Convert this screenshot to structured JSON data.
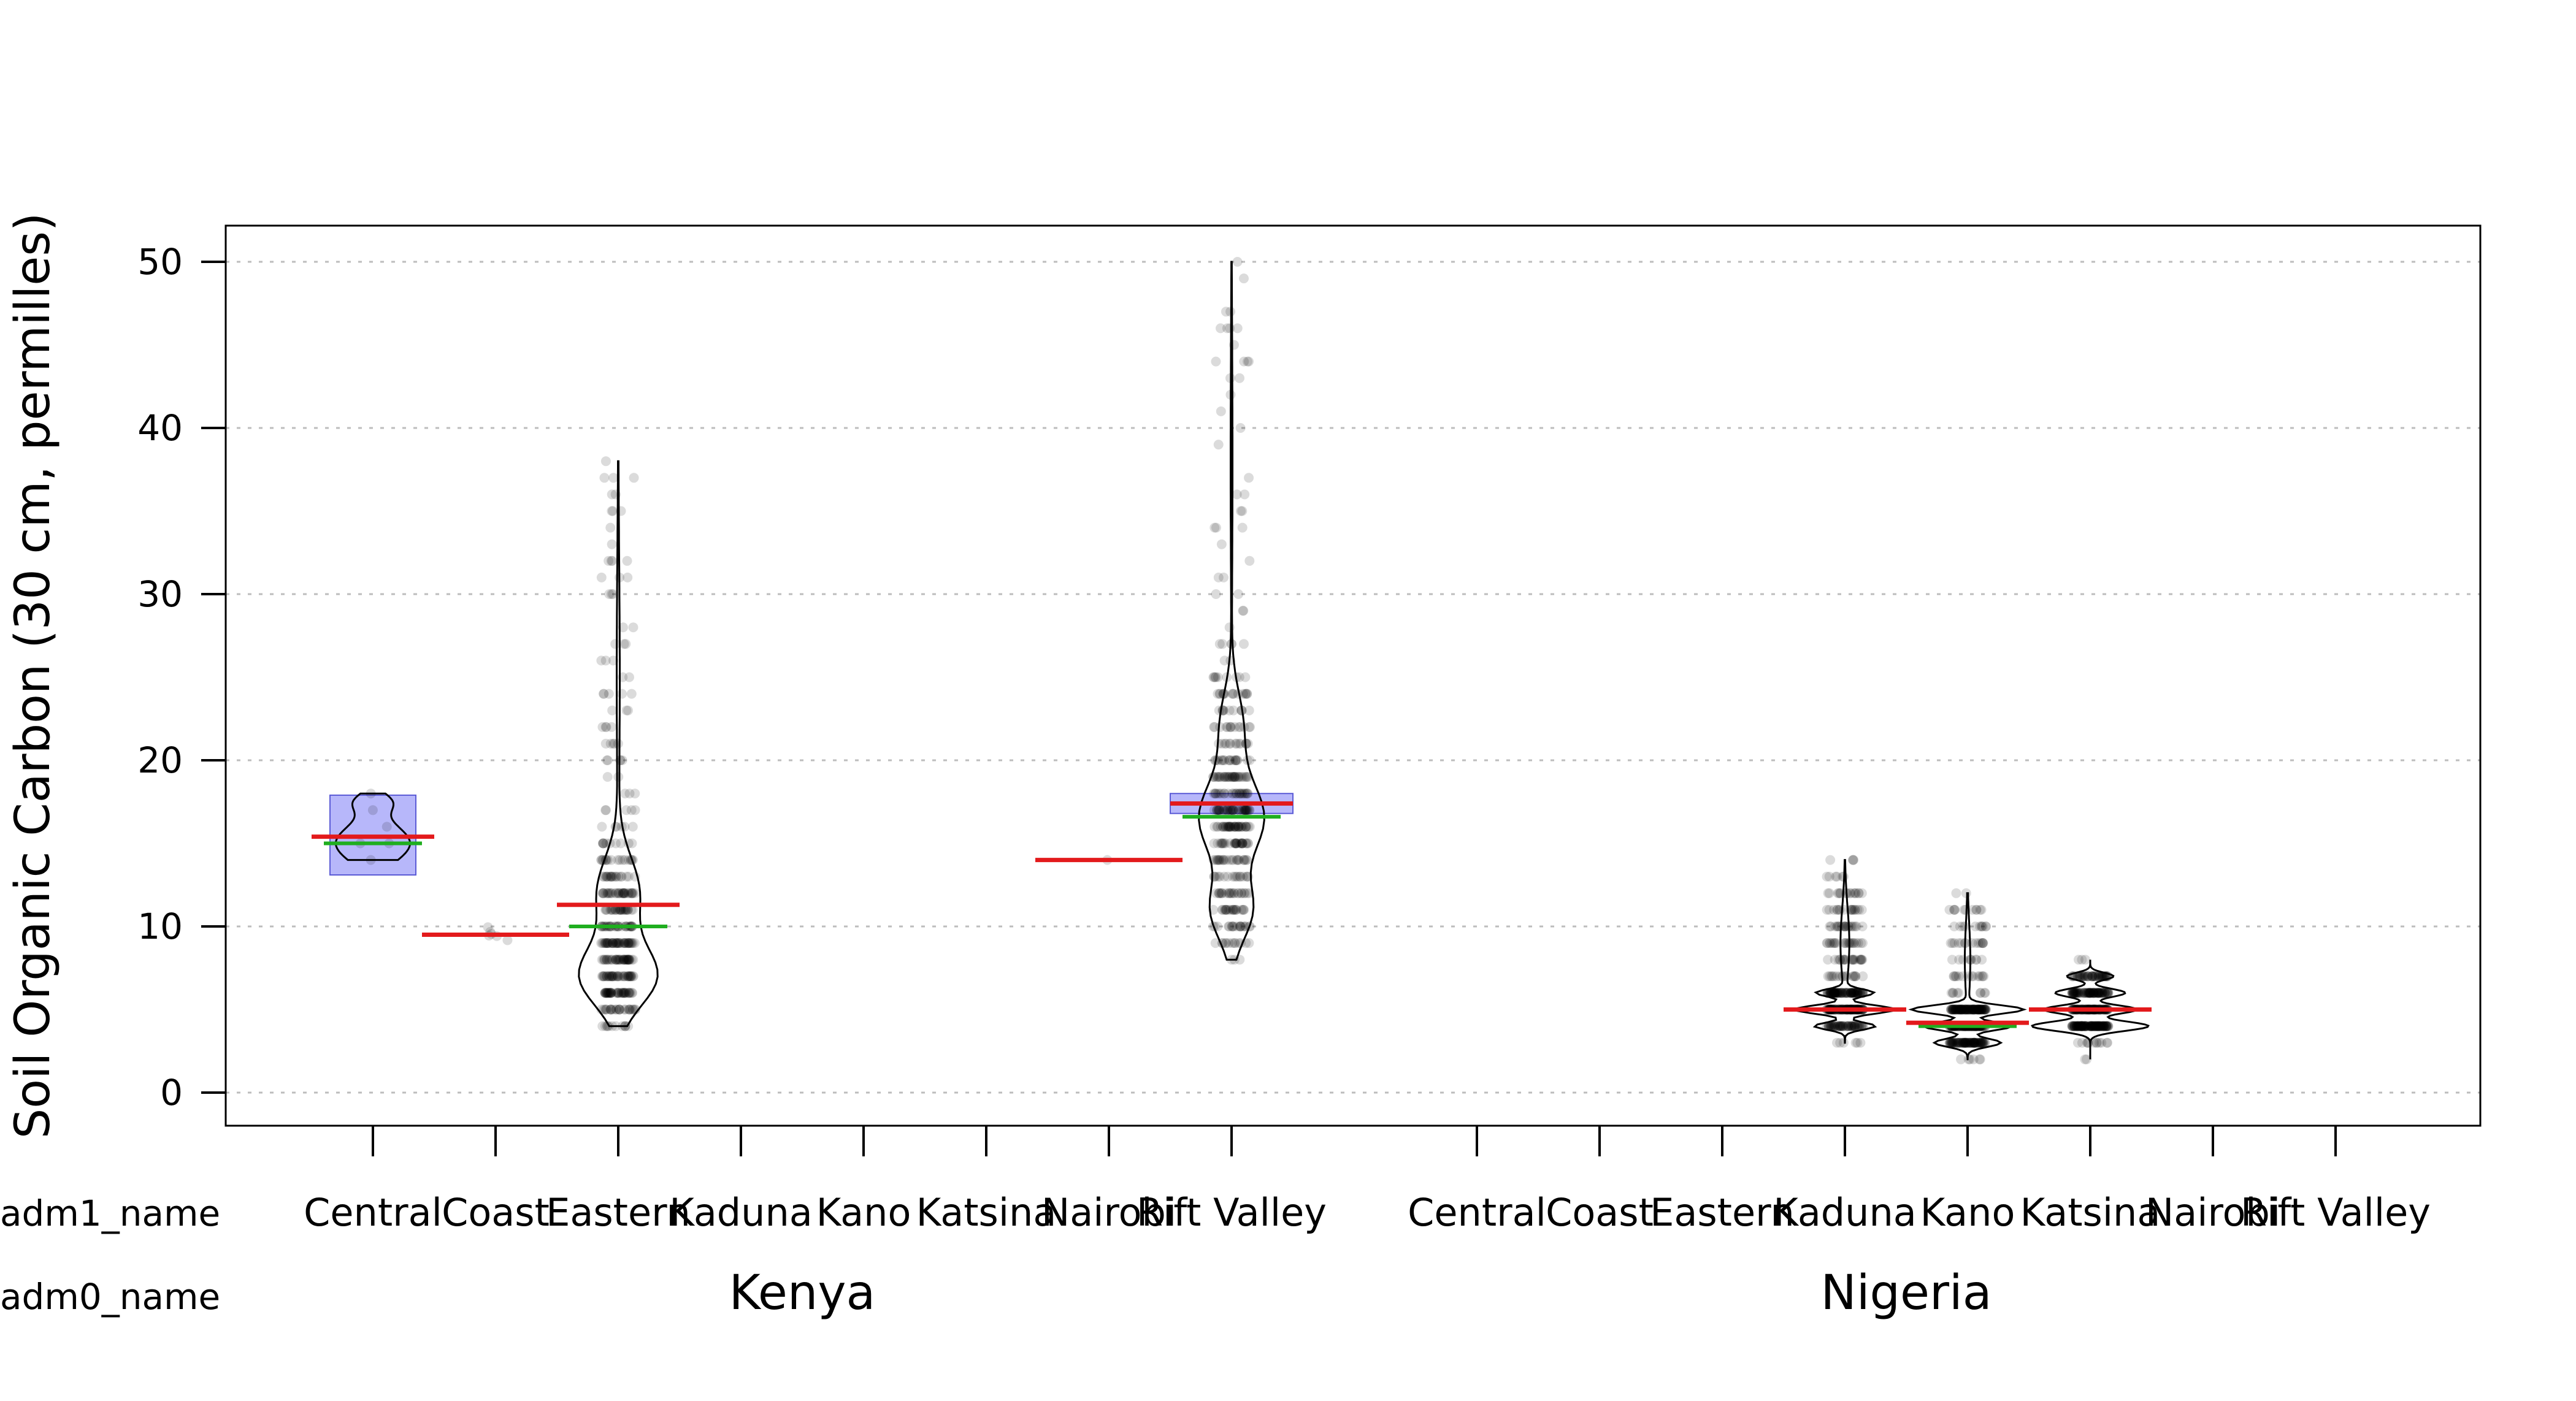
{
  "chart_data": {
    "type": "violin",
    "ylabel": "Soil Organic Carbon (30 cm, permilles)",
    "ylim": [
      -2,
      52
    ],
    "yticks": [
      0,
      10,
      20,
      30,
      40,
      50
    ],
    "grid": "horizontal dotted",
    "row_labels": {
      "adm1": "adm1_name",
      "adm0": "adm0_name"
    },
    "groups": [
      "Kenya",
      "Nigeria"
    ],
    "categories": [
      "Central",
      "Coast",
      "Eastern",
      "Kaduna",
      "Kano",
      "Katsina",
      "Nairobi",
      "Rift Valley"
    ],
    "line_colors": {
      "mean": "#e31a1c",
      "median": "#1fae1f",
      "ci_box": "#7b7bf5"
    },
    "series": [
      {
        "group": "Kenya",
        "category": "Central",
        "mean": 15.4,
        "median": 15.0,
        "ci": [
          13.1,
          17.9
        ],
        "min": 14,
        "max": 18,
        "n": "few"
      },
      {
        "group": "Kenya",
        "category": "Coast",
        "mean": 9.5,
        "median": 9.5,
        "min": 9,
        "max": 10,
        "n": "few"
      },
      {
        "group": "Kenya",
        "category": "Eastern",
        "mean": 11.3,
        "median": 10.0,
        "ci": [
          11.0,
          11.6
        ],
        "min": 4,
        "max": 38,
        "n": "many"
      },
      {
        "group": "Kenya",
        "category": "Nairobi",
        "mean": 14.0,
        "median": 14.0,
        "min": 14,
        "max": 14,
        "n": "single"
      },
      {
        "group": "Kenya",
        "category": "Rift Valley",
        "mean": 17.4,
        "median": 16.6,
        "ci": [
          16.8,
          18.0
        ],
        "min": 8,
        "max": 50,
        "n": "many"
      },
      {
        "group": "Nigeria",
        "category": "Kaduna",
        "mean": 5.0,
        "median": 5.0,
        "min": 3,
        "max": 14,
        "n": "many"
      },
      {
        "group": "Nigeria",
        "category": "Kano",
        "mean": 4.2,
        "median": 4.0,
        "min": 2,
        "max": 12,
        "n": "many"
      },
      {
        "group": "Nigeria",
        "category": "Katsina",
        "mean": 5.0,
        "median": 5.0,
        "min": 2,
        "max": 8,
        "n": "many"
      }
    ]
  }
}
